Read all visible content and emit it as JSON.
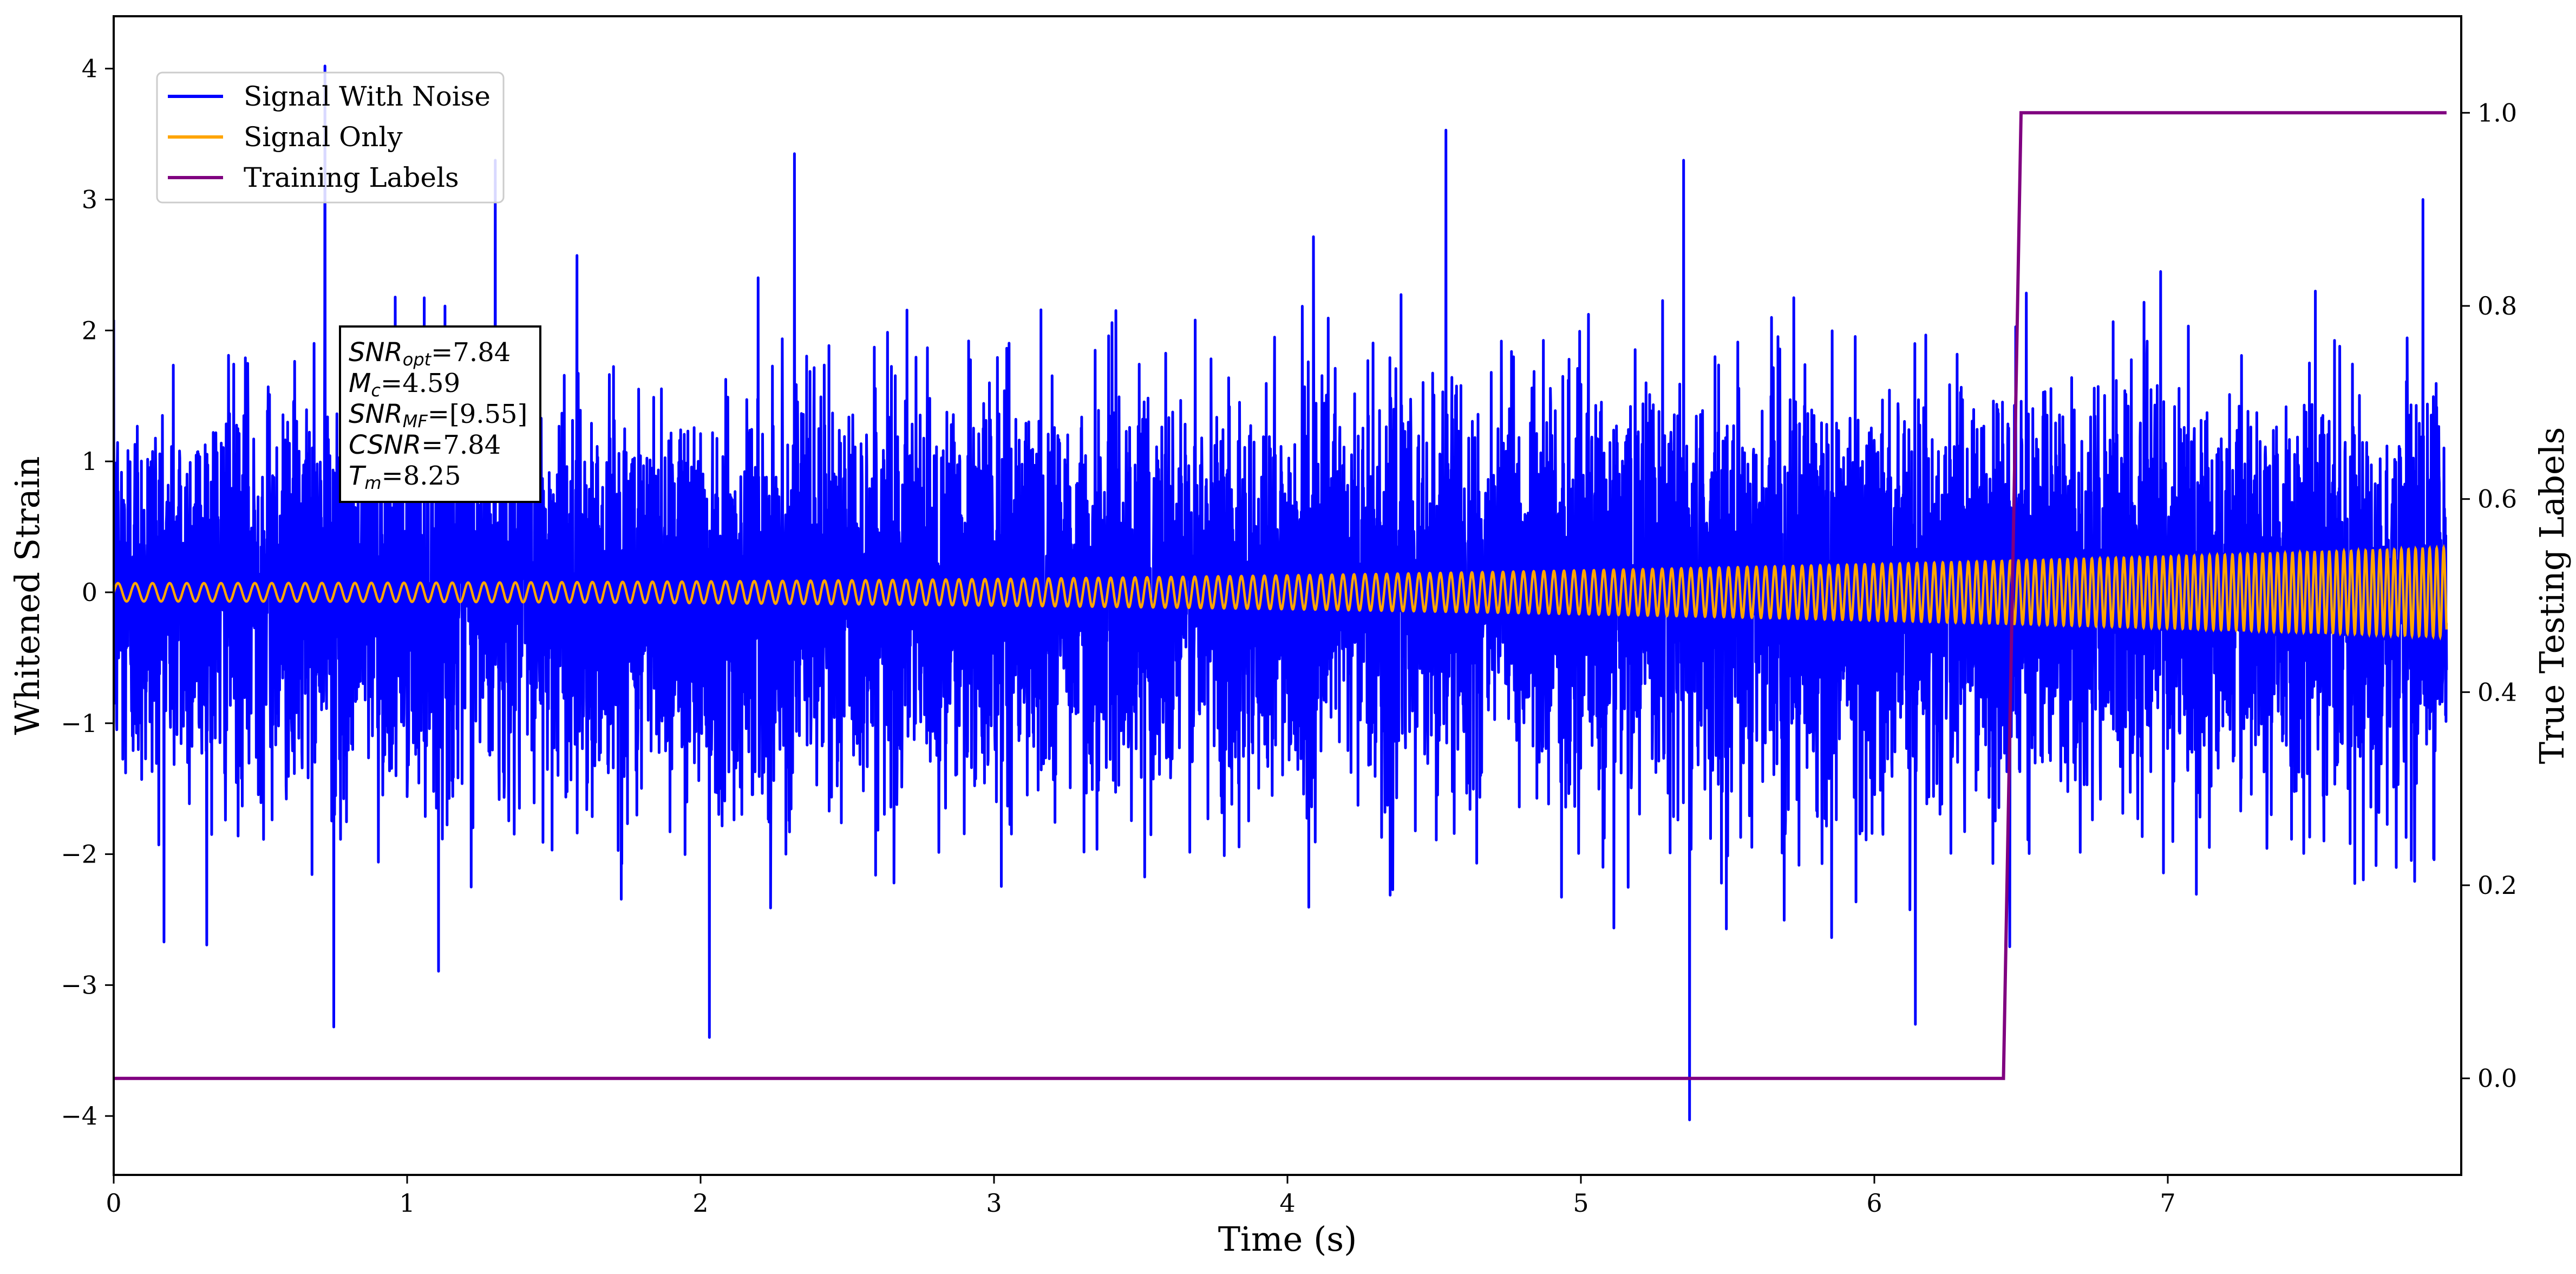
{
  "chart_data": {
    "type": "line",
    "xlabel": "Time (s)",
    "ylabel_left": "Whitened Strain",
    "ylabel_right": "True Testing Labels",
    "xlim": [
      0,
      8.0
    ],
    "ylim_left": [
      -4.45,
      4.4
    ],
    "ylim_right": [
      -0.1,
      1.1
    ],
    "x_ticks": [
      0,
      1,
      2,
      3,
      4,
      5,
      6,
      7
    ],
    "y_ticks_left": [
      -4,
      -3,
      -2,
      -1,
      0,
      1,
      2,
      3,
      4
    ],
    "y_ticks_left_labels": [
      "−4",
      "−3",
      "−2",
      "−1",
      "0",
      "1",
      "2",
      "3",
      "4"
    ],
    "y_ticks_right": [
      0.0,
      0.2,
      0.4,
      0.6,
      0.8,
      1.0
    ],
    "y_ticks_right_labels": [
      "0.0",
      "0.2",
      "0.4",
      "0.6",
      "0.8",
      "1.0"
    ],
    "grid": false,
    "legend_position": "upper-left",
    "series": [
      {
        "name": "Signal With Noise",
        "color": "#0000ff",
        "axis": "left",
        "kind": "noise",
        "approx_std": 0.75,
        "peaks": [
          {
            "x": 0.72,
            "y": 4.02
          },
          {
            "x": 0.75,
            "y": -3.32
          },
          {
            "x": 2.03,
            "y": -3.4
          },
          {
            "x": 1.3,
            "y": 3.3
          },
          {
            "x": 2.32,
            "y": 3.35
          },
          {
            "x": 4.54,
            "y": 3.53
          },
          {
            "x": 5.35,
            "y": 3.3
          },
          {
            "x": 5.37,
            "y": -4.03
          },
          {
            "x": 6.14,
            "y": -3.3
          },
          {
            "x": 7.87,
            "y": 3.0
          }
        ]
      },
      {
        "name": "Signal Only",
        "color": "#ffa500",
        "axis": "left",
        "kind": "chirp",
        "amplitude_start": 0.07,
        "amplitude_end": 0.34
      },
      {
        "name": "Training Labels",
        "color": "#800080",
        "axis": "right",
        "kind": "step",
        "points": [
          [
            0,
            0.0
          ],
          [
            6.44,
            0.0
          ],
          [
            6.5,
            1.0
          ],
          [
            7.95,
            1.0
          ]
        ]
      }
    ]
  },
  "annotation": {
    "snr_opt": {
      "label": "SNR",
      "sub": "opt",
      "value": "=7.84"
    },
    "mc": {
      "label": "M",
      "sub": "c",
      "value": "=4.59"
    },
    "snr_mf": {
      "label": "SNR",
      "sub": "MF",
      "value": "=[9.55]"
    },
    "csnr": {
      "label": "CSNR",
      "value": "=7.84"
    },
    "tm": {
      "label": "T",
      "sub": "m",
      "value": "=8.25"
    }
  }
}
